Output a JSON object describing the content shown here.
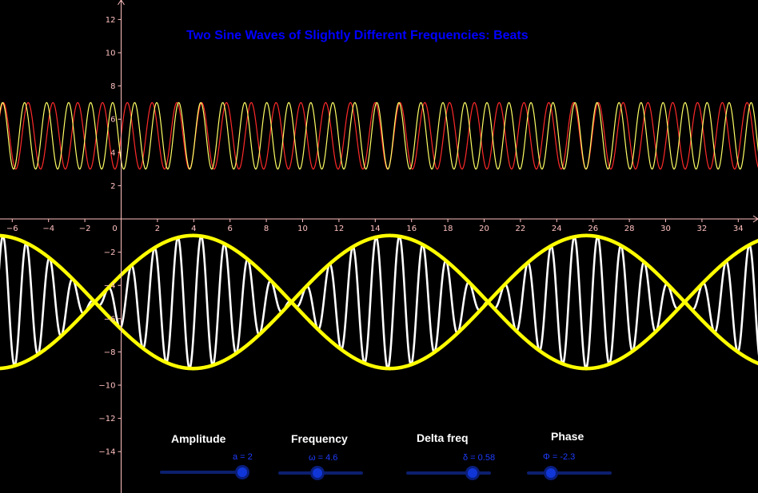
{
  "title": "Two Sine Waves of Slightly Different Frequencies: Beats",
  "chart_data": {
    "type": "line",
    "title": "Two Sine Waves of Slightly Different Frequencies: Beats",
    "xlim": [
      -7,
      35
    ],
    "ylim": [
      -15,
      12.5
    ],
    "x_ticks": [
      -6,
      -4,
      -2,
      2,
      4,
      6,
      8,
      10,
      12,
      14,
      16,
      18,
      20,
      22,
      24,
      26,
      28,
      30,
      32,
      34
    ],
    "y_ticks": [
      12,
      10,
      8,
      6,
      4,
      2,
      -2,
      -4,
      -6,
      -8,
      -10,
      -12,
      -14
    ],
    "origin_label": "0",
    "grid": false,
    "series": [
      {
        "color": "#ff2a2a",
        "formula": "5 + a·sin(ω·x)"
      },
      {
        "color": "#ffff66",
        "formula": "5 + a·sin((ω+δ)·x + Φ)"
      },
      {
        "color": "#ffffff",
        "formula": "-5 + a·sin(ω·x) + a·sin((ω+δ)·x + Φ)"
      },
      {
        "color": "#ffff00",
        "formula": "-5 ± 2a·cos((δ·x + Φ)/2)"
      }
    ],
    "params": {
      "a": 2,
      "omega": 4.6,
      "delta": 0.58,
      "phi": -2.3
    }
  },
  "sliders": [
    {
      "label": "Amplitude",
      "value_text": "a = 2",
      "value": 2,
      "fill": 0.98
    },
    {
      "label": "Frequency",
      "value_text": "ω = 4.6",
      "value": 4.6,
      "fill": 0.46
    },
    {
      "label": "Delta freq",
      "value_text": "δ = 0.58",
      "value": 0.58,
      "fill": 0.78
    },
    {
      "label": "Phase",
      "value_text": "Φ = -2.3",
      "value": -2.3,
      "fill": 0.28
    }
  ],
  "colors": {
    "background": "#000000",
    "axes": "#ffc0c0",
    "title": "#0000ff",
    "slider_text": "#1e3cff"
  }
}
